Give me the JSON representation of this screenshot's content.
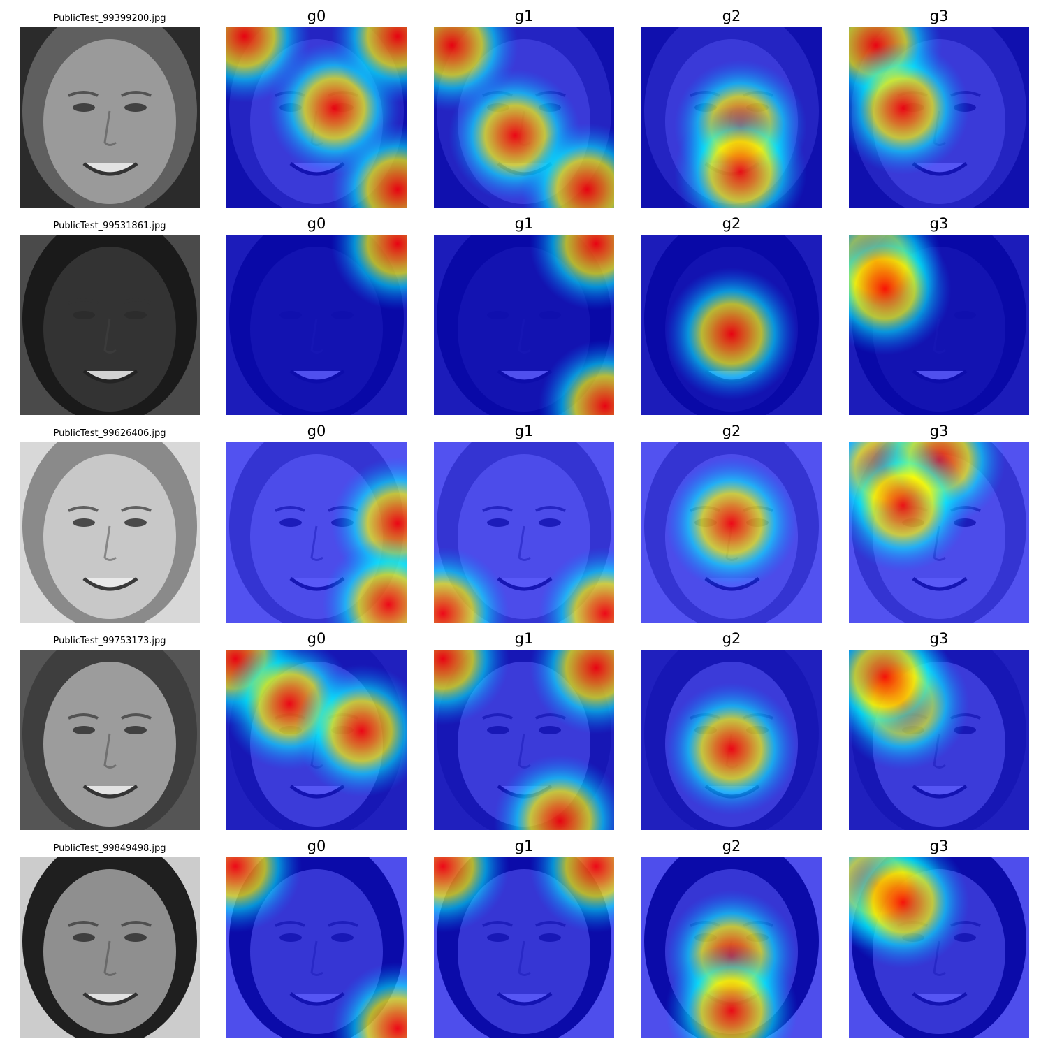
{
  "figure": {
    "rows": [
      {
        "filename": "PublicTest_99399200.jpg",
        "skin": "#9a9a9a",
        "hair": "#5f5f5f",
        "background": "#2b2b2b",
        "heatmaps": [
          {
            "label": "g0",
            "icon": "heatmap-g0",
            "hot": [
              [
                0.6,
                0.45
              ],
              [
                0.1,
                0.05
              ],
              [
                0.95,
                0.05
              ],
              [
                0.95,
                0.9
              ]
            ]
          },
          {
            "label": "g1",
            "icon": "heatmap-g1",
            "hot": [
              [
                0.45,
                0.6
              ],
              [
                0.85,
                0.9
              ],
              [
                0.1,
                0.1
              ]
            ]
          },
          {
            "label": "g2",
            "icon": "heatmap-g2",
            "hot": [
              [
                0.55,
                0.55
              ],
              [
                0.55,
                0.8
              ]
            ]
          },
          {
            "label": "g3",
            "icon": "heatmap-g3",
            "hot": [
              [
                0.15,
                0.1
              ],
              [
                0.3,
                0.45
              ]
            ]
          }
        ]
      },
      {
        "filename": "PublicTest_99531861.jpg",
        "skin": "#333333",
        "hair": "#1a1a1a",
        "background": "#4a4a4a",
        "heatmaps": [
          {
            "label": "g0",
            "icon": "heatmap-g0",
            "hot": [
              [
                0.95,
                0.05
              ]
            ]
          },
          {
            "label": "g1",
            "icon": "heatmap-g1",
            "hot": [
              [
                0.9,
                0.05
              ],
              [
                0.95,
                0.95
              ]
            ]
          },
          {
            "label": "g2",
            "icon": "heatmap-g2",
            "hot": [
              [
                0.5,
                0.55
              ]
            ]
          },
          {
            "label": "g3",
            "icon": "heatmap-g3",
            "hot": [
              [
                0.15,
                0.15
              ],
              [
                0.2,
                0.3
              ]
            ]
          }
        ]
      },
      {
        "filename": "PublicTest_99626406.jpg",
        "skin": "#c8c8c8",
        "hair": "#8a8a8a",
        "background": "#d8d8d8",
        "heatmaps": [
          {
            "label": "g0",
            "icon": "heatmap-g0",
            "hot": [
              [
                0.95,
                0.45
              ],
              [
                0.9,
                0.9
              ]
            ]
          },
          {
            "label": "g1",
            "icon": "heatmap-g1",
            "hot": [
              [
                0.05,
                0.95
              ],
              [
                0.95,
                0.95
              ]
            ]
          },
          {
            "label": "g2",
            "icon": "heatmap-g2",
            "hot": [
              [
                0.5,
                0.45
              ]
            ]
          },
          {
            "label": "g3",
            "icon": "heatmap-g3",
            "hot": [
              [
                0.2,
                0.15
              ],
              [
                0.5,
                0.1
              ],
              [
                0.3,
                0.35
              ]
            ]
          }
        ]
      },
      {
        "filename": "PublicTest_99753173.jpg",
        "skin": "#9c9c9c",
        "hair": "#3e3e3e",
        "background": "#555555",
        "heatmaps": [
          {
            "label": "g0",
            "icon": "heatmap-g0",
            "hot": [
              [
                0.05,
                0.05
              ],
              [
                0.35,
                0.3
              ],
              [
                0.75,
                0.45
              ]
            ]
          },
          {
            "label": "g1",
            "icon": "heatmap-g1",
            "hot": [
              [
                0.9,
                0.1
              ],
              [
                0.05,
                0.05
              ],
              [
                0.7,
                0.95
              ]
            ]
          },
          {
            "label": "g2",
            "icon": "heatmap-g2",
            "hot": [
              [
                0.5,
                0.55
              ]
            ]
          },
          {
            "label": "g3",
            "icon": "heatmap-g3",
            "hot": [
              [
                0.3,
                0.3
              ],
              [
                0.2,
                0.15
              ]
            ]
          }
        ]
      },
      {
        "filename": "PublicTest_99849498.jpg",
        "skin": "#8f8f8f",
        "hair": "#1f1f1f",
        "background": "#cccccc",
        "heatmaps": [
          {
            "label": "g0",
            "icon": "heatmap-g0",
            "hot": [
              [
                0.05,
                0.05
              ],
              [
                0.95,
                0.95
              ]
            ]
          },
          {
            "label": "g1",
            "icon": "heatmap-g1",
            "hot": [
              [
                0.05,
                0.05
              ],
              [
                0.9,
                0.05
              ]
            ]
          },
          {
            "label": "g2",
            "icon": "heatmap-g2",
            "hot": [
              [
                0.5,
                0.55
              ],
              [
                0.5,
                0.85
              ]
            ]
          },
          {
            "label": "g3",
            "icon": "heatmap-g3",
            "hot": [
              [
                0.15,
                0.15
              ],
              [
                0.3,
                0.25
              ]
            ]
          }
        ]
      }
    ],
    "colormap": [
      "#00007f",
      "#0000ff",
      "#007fff",
      "#00ffff",
      "#7fff7f",
      "#ffff00",
      "#ff7f00",
      "#ff0000",
      "#7f0000"
    ]
  }
}
